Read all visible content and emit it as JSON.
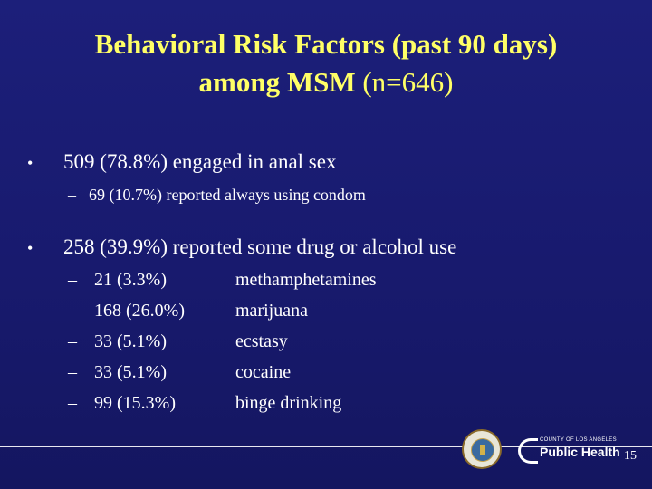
{
  "slide": {
    "title": {
      "line1": "Behavioral Risk Factors (past 90 days)",
      "line2_bold": "among MSM",
      "line2_rest": " (n=646)"
    },
    "bullets": [
      {
        "marker": "•",
        "text": "509 (78.8%) engaged in anal sex",
        "sub": [
          {
            "marker": "–",
            "text": "69 (10.7%) reported always using condom"
          }
        ]
      },
      {
        "marker": "•",
        "text": "258 (39.9%) reported some drug or alcohol use",
        "sub": [
          {
            "marker": "–",
            "value": "21 (3.3%)",
            "label": "methamphetamines"
          },
          {
            "marker": "–",
            "value": "168 (26.0%)",
            "label": "marijuana"
          },
          {
            "marker": "–",
            "value": "33 (5.1%)",
            "label": "ecstasy"
          },
          {
            "marker": "–",
            "value": "33 (5.1%)",
            "label": "cocaine"
          },
          {
            "marker": "–",
            "value": "99 (15.3%)",
            "label": "binge drinking"
          }
        ]
      }
    ],
    "footer": {
      "logo_county_text": "COUNTY OF LOS ANGELES",
      "logo_name": "Public Health",
      "page_number": "15"
    }
  }
}
